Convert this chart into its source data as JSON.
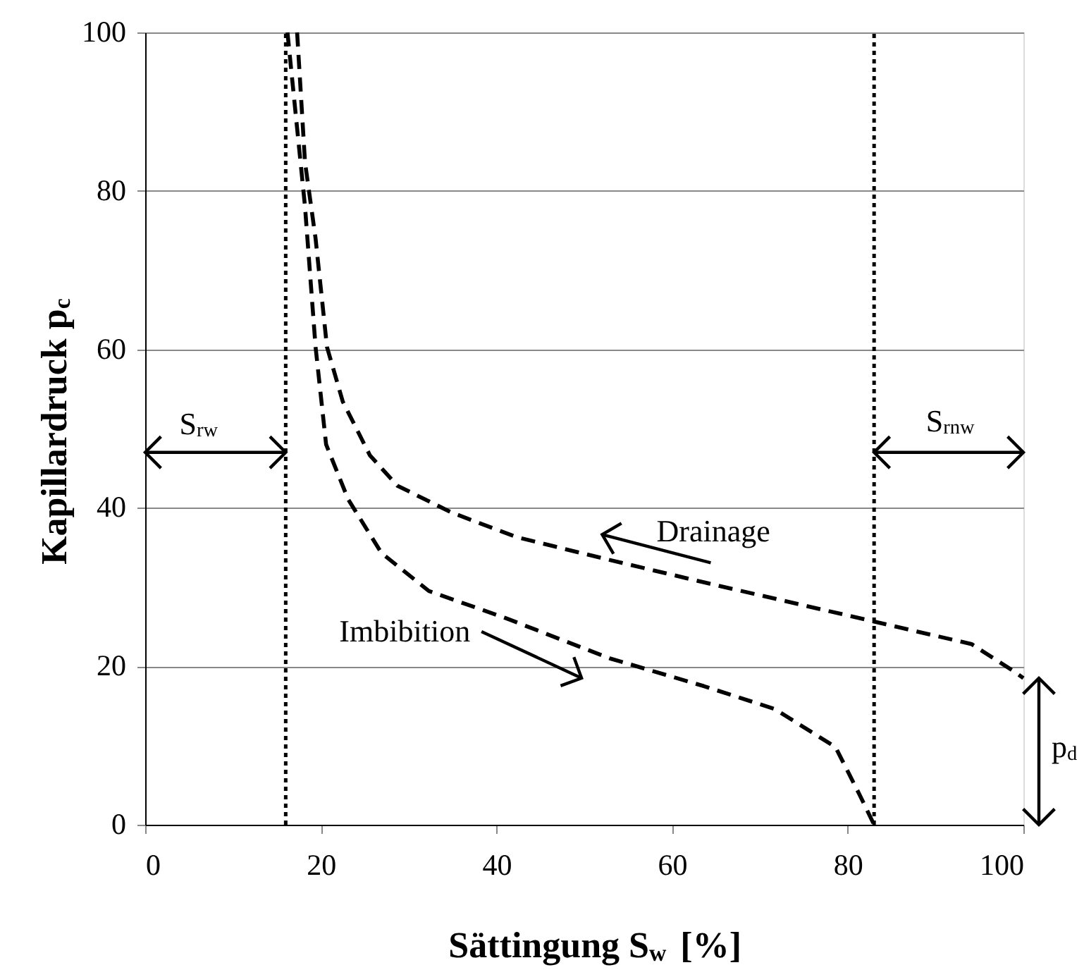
{
  "chart_data": {
    "type": "line",
    "xlabel": "Sättingung S$_{w}$ [%]",
    "ylabel": "Kapillardruck p$_{c}$",
    "xlim": [
      0,
      100
    ],
    "ylim": [
      0,
      100
    ],
    "xticks": [
      0,
      20,
      40,
      60,
      80,
      100
    ],
    "yticks": [
      0,
      20,
      40,
      60,
      80,
      100
    ],
    "grid": "y",
    "marker": "none",
    "line_style": "dashed",
    "series": [
      {
        "color": "#000000",
        "x": [
          17.3,
          18.2,
          19.4,
          20.7,
          22.5,
          25.6,
          28.7,
          34.9,
          42.3,
          52.2,
          63.6,
          82.4,
          94.1,
          99,
          100
        ],
        "values": [
          100,
          83.6,
          74,
          60.3,
          53.4,
          46.6,
          42.8,
          39.4,
          36.3,
          33.6,
          30.6,
          25.8,
          22.8,
          19.3,
          18.5
        ]
      },
      {
        "color": "#000000",
        "x": [
          16.2,
          18.2,
          19.4,
          20.6,
          23.1,
          26.9,
          32.3,
          41,
          52.9,
          63.6,
          71.7,
          78.6,
          81.3,
          83
        ],
        "values": [
          100,
          78,
          60.3,
          48,
          41.1,
          34.3,
          29.5,
          26.1,
          21.0,
          17.5,
          14.6,
          9.8,
          3.9,
          0
        ]
      }
    ],
    "ref_lines": [
      {
        "axis": "x",
        "value": 16,
        "color": "#000000",
        "line_style": "dotted"
      },
      {
        "axis": "x",
        "value": 83,
        "color": "#000000",
        "line_style": "dotted"
      }
    ],
    "annotations": [
      {
        "text": "S$_{rw}$",
        "x": 16,
        "y": 47
      },
      {
        "text": "S$_{rnw}$",
        "x": 83,
        "y": 47
      },
      "p$_{d}$",
      "Drainage",
      "Imbibition"
    ]
  }
}
